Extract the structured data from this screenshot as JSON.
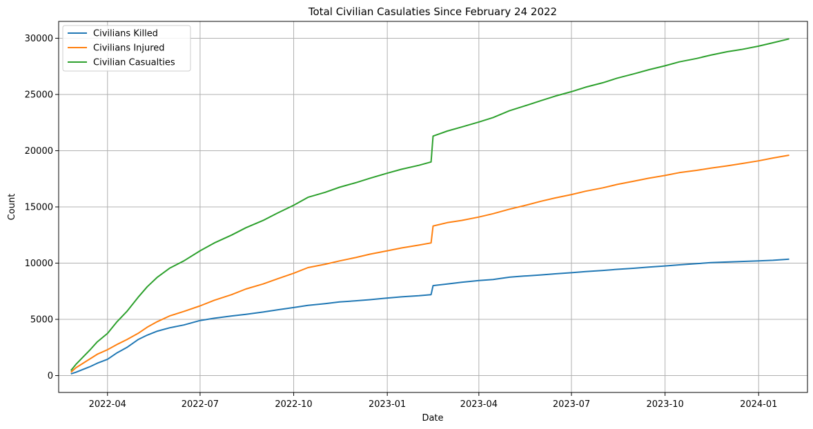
{
  "chart_data": {
    "type": "line",
    "title": "Total Civilian Casulaties Since February 24 2022",
    "xlabel": "Date",
    "ylabel": "Count",
    "xlim": [
      "2022-02-12",
      "2024-02-18"
    ],
    "ylim": [
      -1500,
      31500
    ],
    "grid": true,
    "legend_position": "top-left",
    "x_ticks": [
      "2022-04-01",
      "2022-07-01",
      "2022-10-01",
      "2023-01-01",
      "2023-04-01",
      "2023-07-01",
      "2023-10-01",
      "2024-01-01"
    ],
    "x_tick_labels": [
      "2022-04",
      "2022-07",
      "2022-10",
      "2023-01",
      "2023-04",
      "2023-07",
      "2023-10",
      "2024-01"
    ],
    "y_ticks": [
      0,
      5000,
      10000,
      15000,
      20000,
      25000,
      30000
    ],
    "y_tick_labels": [
      "0",
      "5000",
      "10000",
      "15000",
      "20000",
      "25000",
      "30000"
    ],
    "x": [
      "2022-02-24",
      "2022-03-01",
      "2022-03-08",
      "2022-03-15",
      "2022-03-22",
      "2022-04-01",
      "2022-04-10",
      "2022-04-20",
      "2022-05-01",
      "2022-05-10",
      "2022-05-20",
      "2022-06-01",
      "2022-06-15",
      "2022-07-01",
      "2022-07-15",
      "2022-08-01",
      "2022-08-15",
      "2022-09-01",
      "2022-09-15",
      "2022-10-01",
      "2022-10-15",
      "2022-11-01",
      "2022-11-15",
      "2022-12-01",
      "2022-12-15",
      "2023-01-01",
      "2023-01-15",
      "2023-02-01",
      "2023-02-13",
      "2023-02-15",
      "2023-03-01",
      "2023-03-15",
      "2023-04-01",
      "2023-04-15",
      "2023-05-01",
      "2023-05-15",
      "2023-06-01",
      "2023-06-15",
      "2023-07-01",
      "2023-07-15",
      "2023-08-01",
      "2023-08-15",
      "2023-09-01",
      "2023-09-15",
      "2023-10-01",
      "2023-10-15",
      "2023-11-01",
      "2023-11-15",
      "2023-12-01",
      "2023-12-15",
      "2024-01-01",
      "2024-01-15",
      "2024-01-31"
    ],
    "series": [
      {
        "name": "Civilians Killed",
        "color": "#1f77b4",
        "values": [
          150,
          300,
          550,
          800,
          1100,
          1450,
          2000,
          2500,
          3200,
          3600,
          3950,
          4250,
          4500,
          4900,
          5100,
          5300,
          5450,
          5650,
          5850,
          6050,
          6250,
          6400,
          6550,
          6650,
          6750,
          6900,
          7000,
          7100,
          7200,
          8000,
          8150,
          8300,
          8450,
          8550,
          8750,
          8850,
          8950,
          9050,
          9150,
          9250,
          9350,
          9450,
          9550,
          9650,
          9750,
          9850,
          9950,
          10050,
          10100,
          10150,
          10200,
          10250,
          10350
        ]
      },
      {
        "name": "Civilians Injured",
        "color": "#ff7f0e",
        "values": [
          300,
          700,
          1100,
          1500,
          1900,
          2300,
          2750,
          3200,
          3750,
          4300,
          4800,
          5300,
          5700,
          6200,
          6700,
          7200,
          7700,
          8150,
          8600,
          9100,
          9600,
          9900,
          10200,
          10500,
          10800,
          11100,
          11350,
          11600,
          11800,
          13300,
          13600,
          13800,
          14100,
          14400,
          14800,
          15100,
          15500,
          15800,
          16100,
          16400,
          16700,
          17000,
          17300,
          17550,
          17800,
          18050,
          18250,
          18450,
          18650,
          18850,
          19100,
          19350,
          19600
        ]
      },
      {
        "name": "Civilian Casualties",
        "color": "#2ca02c",
        "values": [
          450,
          1000,
          1650,
          2300,
          3000,
          3750,
          4750,
          5700,
          6950,
          7900,
          8750,
          9550,
          10200,
          11100,
          11800,
          12500,
          13150,
          13800,
          14450,
          15150,
          15850,
          16300,
          16750,
          17150,
          17550,
          18000,
          18350,
          18700,
          19000,
          21300,
          21750,
          22100,
          22550,
          22950,
          23550,
          23950,
          24450,
          24850,
          25250,
          25650,
          26050,
          26450,
          26850,
          27200,
          27550,
          27900,
          28200,
          28500,
          28800,
          29000,
          29300,
          29600,
          29950
        ]
      }
    ]
  }
}
